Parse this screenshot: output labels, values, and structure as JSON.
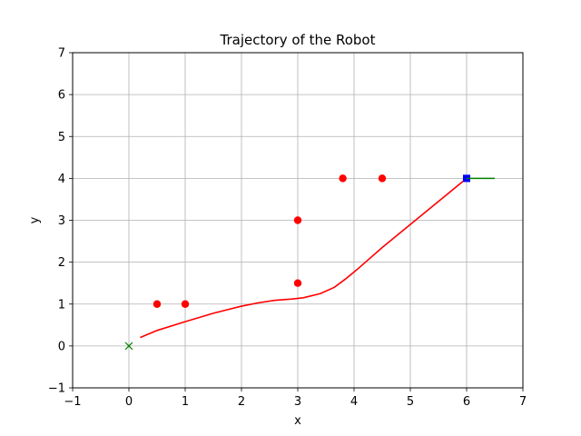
{
  "chart_data": {
    "type": "scatter",
    "title": "Trajectory of the Robot",
    "xlabel": "x",
    "ylabel": "y",
    "xlim": [
      -1,
      7
    ],
    "ylim": [
      -1,
      7
    ],
    "xticks": [
      -1,
      0,
      1,
      2,
      3,
      4,
      5,
      6,
      7
    ],
    "yticks": [
      -1,
      0,
      1,
      2,
      3,
      4,
      5,
      6,
      7
    ],
    "grid": true,
    "legend": false,
    "series": [
      {
        "kind": "line",
        "color": "#ff0000",
        "x": [
          0.2,
          0.5,
          1.0,
          1.5,
          2.0,
          2.3,
          2.6,
          2.9,
          3.1,
          3.4,
          3.65,
          3.85,
          4.05,
          4.5,
          5.0,
          5.5,
          6.0
        ],
        "y": [
          0.2,
          0.37,
          0.58,
          0.78,
          0.95,
          1.03,
          1.09,
          1.12,
          1.15,
          1.25,
          1.4,
          1.6,
          1.82,
          2.35,
          2.9,
          3.45,
          4.0
        ]
      },
      {
        "kind": "points",
        "color": "#ff0000",
        "marker": "circle",
        "x": [
          0.5,
          1.0,
          3.0,
          3.0,
          3.8,
          4.5
        ],
        "y": [
          1.0,
          1.0,
          1.5,
          3.0,
          4.0,
          4.0
        ]
      },
      {
        "kind": "points",
        "color": "#008000",
        "marker": "x",
        "x": [
          0.0
        ],
        "y": [
          0.0
        ]
      },
      {
        "kind": "points",
        "color": "#0000ff",
        "marker": "square",
        "x": [
          6.0
        ],
        "y": [
          4.0
        ]
      },
      {
        "kind": "line",
        "color": "#008000",
        "x": [
          6.0,
          6.5
        ],
        "y": [
          4.0,
          4.0
        ]
      }
    ]
  }
}
